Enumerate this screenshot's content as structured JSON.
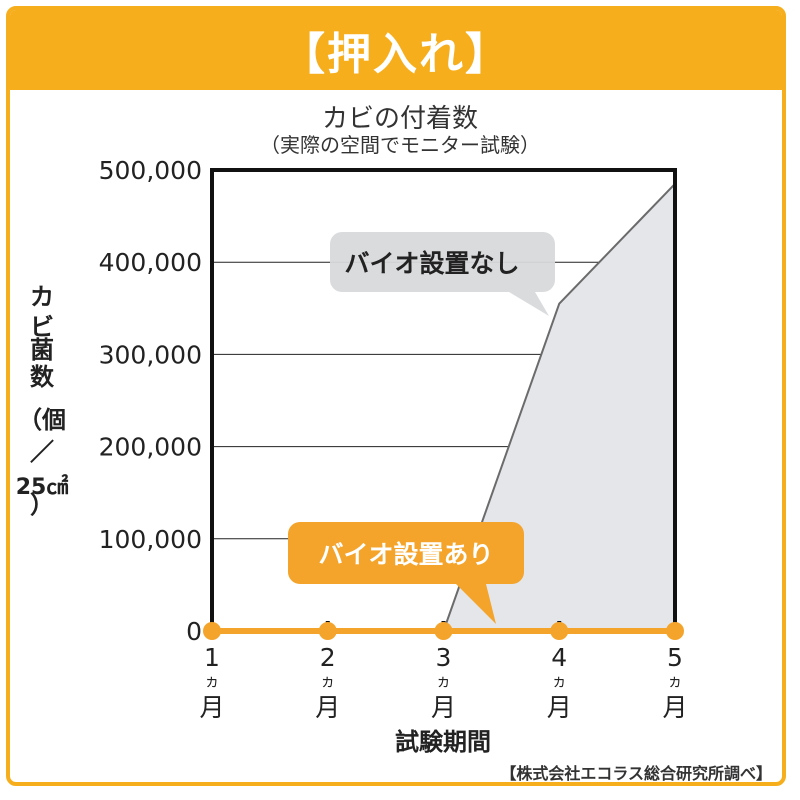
{
  "header": {
    "title": "【押入れ】"
  },
  "colors": {
    "accent": "#f6ae1c",
    "with_bio": "#f4a42a",
    "without_bio_fill": "#e4e6ea",
    "without_bio_line": "#6b6b6b",
    "bubble_gray": "#d8d9db"
  },
  "chart_data": {
    "type": "area",
    "title": "カビの付着数",
    "subtitle": "（実際の空間でモニター試験）",
    "ylabel_lines": [
      "カ",
      "ビ",
      "菌",
      "数",
      "（個",
      "／",
      "25㎠",
      "）"
    ],
    "xlabel": "試験期間",
    "x": [
      1,
      2,
      3,
      4,
      5
    ],
    "x_tick_labels": [
      {
        "num": "1",
        "unit": "ヵ",
        "month": "月"
      },
      {
        "num": "2",
        "unit": "ヵ",
        "month": "月"
      },
      {
        "num": "3",
        "unit": "ヵ",
        "month": "月"
      },
      {
        "num": "4",
        "unit": "ヵ",
        "month": "月"
      },
      {
        "num": "5",
        "unit": "ヵ",
        "month": "月"
      }
    ],
    "ylim": [
      0,
      500000
    ],
    "y_ticks": [
      0,
      100000,
      200000,
      300000,
      400000,
      500000
    ],
    "y_tick_labels": [
      "0",
      "100,000",
      "200,000",
      "300,000",
      "400,000",
      "500,000"
    ],
    "grid": true,
    "series": [
      {
        "name": "バイオ設置なし",
        "x": [
          3,
          4,
          5
        ],
        "values": [
          0,
          355000,
          485000
        ]
      },
      {
        "name": "バイオ設置あり",
        "x": [
          1,
          2,
          3,
          4,
          5
        ],
        "values": [
          0,
          0,
          0,
          0,
          0
        ]
      }
    ]
  },
  "footer": {
    "source": "【株式会社エコラス総合研究所調べ】"
  }
}
